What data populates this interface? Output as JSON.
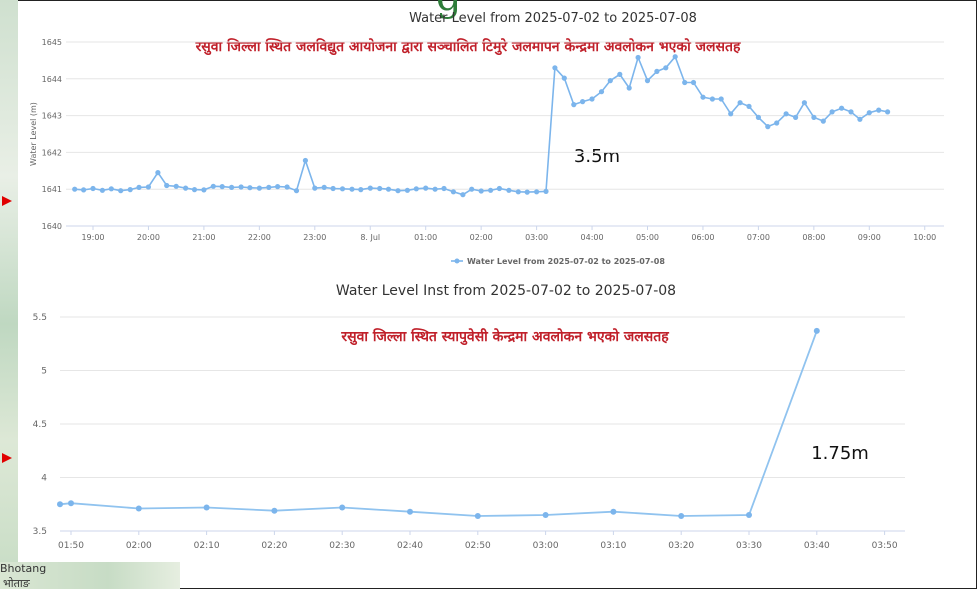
{
  "map_labels": [
    "Bhotang",
    "भोताङ"
  ],
  "chart_data": [
    {
      "type": "line",
      "title": "Water Level from 2025-07-02 to 2025-07-08",
      "ylabel": "Water Level (m)",
      "ylim": [
        1640,
        1645
      ],
      "yticks": [
        "1640",
        "1641",
        "1642",
        "1643",
        "1644",
        "1645"
      ],
      "xticks": [
        "19:00",
        "20:00",
        "21:00",
        "22:00",
        "23:00",
        "8. Jul",
        "01:00",
        "02:00",
        "03:00",
        "04:00",
        "05:00",
        "06:00",
        "07:00",
        "08:00",
        "09:00",
        "10:00"
      ],
      "x_unit": "hours after 19:00",
      "legend": "Water Level from 2025-07-02 to 2025-07-08",
      "legend_position": "bottom-center",
      "annotation_main": "रसुवा जिल्ला स्थित जलविद्युत आयोजना द्वारा सञ्चालित टिमुरे जलमापन केन्द्रमा अवलोकन भएको जलसतह",
      "annotation_delta": "3.5m",
      "color": "#7cb5ec",
      "series": [
        {
          "x": [
            -0.33,
            -0.17,
            0,
            0.17,
            0.33,
            0.5,
            0.67,
            0.83,
            1,
            1.17,
            1.33,
            1.5,
            1.67,
            1.83,
            2,
            2.17,
            2.33,
            2.5,
            2.67,
            2.83,
            3,
            3.17,
            3.33,
            3.5,
            3.67,
            3.83,
            4,
            4.17,
            4.33,
            4.5,
            4.67,
            4.83,
            5,
            5.17,
            5.33,
            5.5,
            5.67,
            5.83,
            6,
            6.17,
            6.33,
            6.5,
            6.67,
            6.83,
            7,
            7.17,
            7.33,
            7.5,
            7.67,
            7.83,
            8,
            8.17,
            8.33,
            8.5,
            8.67,
            8.83,
            9,
            9.17,
            9.33,
            9.5,
            9.67,
            9.83,
            10,
            10.17,
            10.33,
            10.5,
            10.67,
            10.83,
            11,
            11.17,
            11.33,
            11.5,
            11.67,
            11.83,
            12,
            12.17,
            12.33,
            12.5,
            12.67,
            12.83,
            13,
            13.17,
            13.33,
            13.5,
            13.67,
            13.83,
            14,
            14.17,
            14.33
          ],
          "values": [
            1641.0,
            1640.98,
            1641.02,
            1640.97,
            1641.01,
            1640.96,
            1640.99,
            1641.05,
            1641.06,
            1641.45,
            1641.1,
            1641.08,
            1641.03,
            1640.99,
            1640.98,
            1641.08,
            1641.07,
            1641.05,
            1641.06,
            1641.04,
            1641.03,
            1641.05,
            1641.07,
            1641.06,
            1640.96,
            1641.78,
            1641.03,
            1641.05,
            1641.02,
            1641.01,
            1641.0,
            1640.99,
            1641.03,
            1641.02,
            1641.0,
            1640.96,
            1640.97,
            1641.01,
            1641.03,
            1641.0,
            1641.02,
            1640.93,
            1640.85,
            1641.0,
            1640.95,
            1640.97,
            1641.02,
            1640.97,
            1640.93,
            1640.92,
            1640.93,
            1640.94,
            1644.3,
            1644.02,
            1643.3,
            1643.38,
            1643.45,
            1643.65,
            1643.95,
            1644.12,
            1643.75,
            1644.58,
            1643.95,
            1644.2,
            1644.3,
            1644.6,
            1643.9,
            1643.9,
            1643.5,
            1643.45,
            1643.45,
            1643.05,
            1643.35,
            1643.25,
            1642.95,
            1642.7,
            1642.8,
            1643.05,
            1642.95,
            1643.35,
            1642.95,
            1642.85,
            1643.1,
            1643.2,
            1643.1,
            1642.9,
            1643.08,
            1643.15,
            1643.1
          ]
        }
      ]
    },
    {
      "type": "line",
      "title": "Water Level Inst from 2025-07-02 to 2025-07-08",
      "ylim": [
        3.5,
        5.5
      ],
      "yticks": [
        "3.5",
        "4",
        "4.5",
        "5",
        "5.5"
      ],
      "xticks": [
        "01:50",
        "02:00",
        "02:10",
        "02:20",
        "02:30",
        "02:40",
        "02:50",
        "03:00",
        "03:10",
        "03:20",
        "03:30",
        "03:40",
        "03:50"
      ],
      "annotation_main": "रसुवा जिल्ला स्थित स्यापुवेसी केन्द्रमा अवलोकन भएको जलसतह",
      "annotation_delta": "1.75m",
      "color": "#7cb5ec",
      "series": [
        {
          "x": [
            "01:40",
            "01:50",
            "02:00",
            "02:10",
            "02:20",
            "02:30",
            "02:40",
            "02:50",
            "03:00",
            "03:10",
            "03:20",
            "03:30",
            "03:40"
          ],
          "values": [
            3.75,
            3.76,
            3.71,
            3.72,
            3.69,
            3.72,
            3.68,
            3.64,
            3.65,
            3.68,
            3.64,
            3.65,
            5.37
          ]
        }
      ]
    }
  ]
}
